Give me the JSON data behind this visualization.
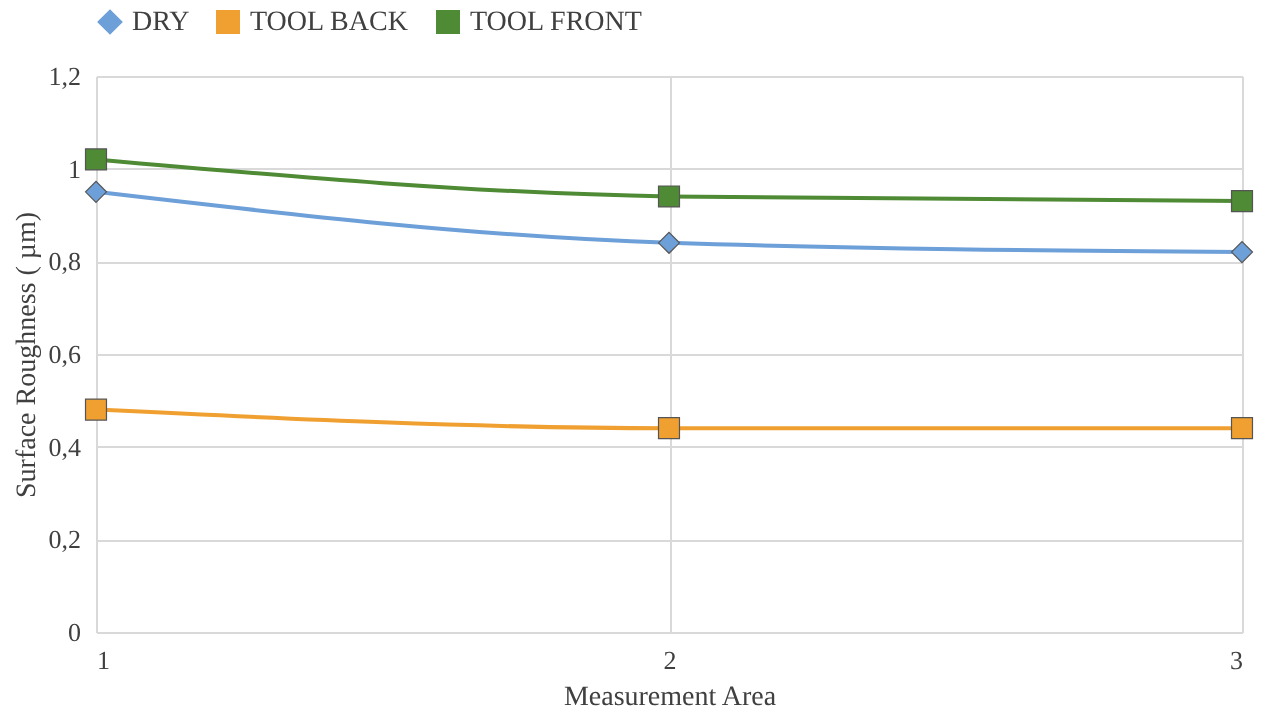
{
  "chart_data": {
    "type": "line",
    "xlabel": "Measurement  Area",
    "ylabel": "Surface Roughness ( µm)",
    "x": [
      1,
      2,
      3
    ],
    "xlim": [
      1,
      3
    ],
    "xticks": [
      1,
      2,
      3
    ],
    "ylim": [
      0,
      1.2
    ],
    "yticks": [
      0,
      {
        "value": 0.2,
        "label": "0,2"
      },
      {
        "value": 0.4,
        "label": "0,4"
      },
      {
        "value": 0.6,
        "label": "0,6"
      },
      {
        "value": 0.8,
        "label": "0,8"
      },
      1,
      {
        "value": 1.2,
        "label": "1,2"
      }
    ],
    "grid": true,
    "legend": "top",
    "line_style": "solid",
    "series": [
      {
        "name": "DRY",
        "color": "#6d9fd8",
        "marker": "diamond",
        "values": [
          0.95,
          0.84,
          0.82
        ]
      },
      {
        "name": "TOOL BACK",
        "color": "#f0a030",
        "marker": "square",
        "values": [
          0.48,
          0.44,
          0.44
        ]
      },
      {
        "name": "TOOL FRONT",
        "color": "#4f8a34",
        "marker": "square",
        "values": [
          1.02,
          0.94,
          0.93
        ]
      }
    ]
  }
}
